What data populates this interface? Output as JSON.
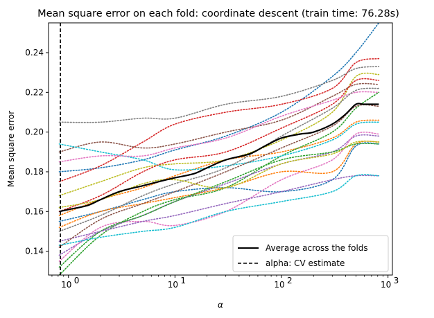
{
  "chart_data": {
    "type": "line",
    "title": "Mean square error on each fold: coordinate descent (train time: 76.28s)",
    "xlabel": "α",
    "ylabel": "Mean square error",
    "xscale": "log",
    "xlim": [
      0.65,
      1100
    ],
    "ylim": [
      0.128,
      0.255
    ],
    "grid": false,
    "legend_position": "lower-right",
    "x_ticks": [
      {
        "value": 1,
        "label": "10",
        "exp": "0"
      },
      {
        "value": 10,
        "label": "10",
        "exp": "1"
      },
      {
        "value": 100,
        "label": "10",
        "exp": "2"
      },
      {
        "value": 1000,
        "label": "10",
        "exp": "3"
      }
    ],
    "y_ticks": [
      0.14,
      0.16,
      0.18,
      0.2,
      0.22,
      0.24
    ],
    "y_tick_labels": [
      "0.14",
      "0.16",
      "0.18",
      "0.20",
      "0.22",
      "0.24"
    ],
    "x": [
      0.82,
      2,
      5,
      10,
      30,
      100,
      300,
      500,
      820
    ],
    "fold_series": [
      {
        "color": "#1f77b4",
        "values": [
          0.18,
          0.182,
          0.186,
          0.191,
          0.198,
          0.21,
          0.228,
          0.24,
          0.255
        ]
      },
      {
        "color": "#ff7f0e",
        "values": [
          0.158,
          0.166,
          0.172,
          0.178,
          0.186,
          0.19,
          0.197,
          0.205,
          0.206
        ]
      },
      {
        "color": "#2ca02c",
        "values": [
          0.128,
          0.148,
          0.16,
          0.166,
          0.172,
          0.188,
          0.2,
          0.212,
          0.22
        ]
      },
      {
        "color": "#d62728",
        "values": [
          0.175,
          0.183,
          0.195,
          0.204,
          0.21,
          0.214,
          0.222,
          0.235,
          0.237
        ]
      },
      {
        "color": "#9467bd",
        "values": [
          0.138,
          0.15,
          0.158,
          0.165,
          0.174,
          0.184,
          0.19,
          0.198,
          0.198
        ]
      },
      {
        "color": "#8c564b",
        "values": [
          0.19,
          0.195,
          0.192,
          0.194,
          0.2,
          0.206,
          0.218,
          0.224,
          0.224
        ]
      },
      {
        "color": "#e377c2",
        "values": [
          0.135,
          0.152,
          0.155,
          0.153,
          0.16,
          0.176,
          0.186,
          0.199,
          0.199
        ]
      },
      {
        "color": "#7f7f7f",
        "values": [
          0.205,
          0.205,
          0.207,
          0.207,
          0.214,
          0.218,
          0.226,
          0.232,
          0.233
        ]
      },
      {
        "color": "#bcbd22",
        "values": [
          0.168,
          0.175,
          0.182,
          0.184,
          0.186,
          0.196,
          0.21,
          0.228,
          0.229
        ]
      },
      {
        "color": "#17becf",
        "values": [
          0.194,
          0.19,
          0.186,
          0.181,
          0.183,
          0.188,
          0.196,
          0.204,
          0.205
        ]
      },
      {
        "color": "#1f77b4",
        "values": [
          0.155,
          0.16,
          0.166,
          0.17,
          0.172,
          0.17,
          0.176,
          0.193,
          0.194
        ]
      },
      {
        "color": "#ff7f0e",
        "values": [
          0.152,
          0.16,
          0.164,
          0.167,
          0.172,
          0.18,
          0.18,
          0.194,
          0.195
        ]
      },
      {
        "color": "#2ca02c",
        "values": [
          0.132,
          0.15,
          0.158,
          0.165,
          0.175,
          0.186,
          0.19,
          0.194,
          0.194
        ]
      },
      {
        "color": "#d62728",
        "values": [
          0.16,
          0.168,
          0.18,
          0.186,
          0.19,
          0.202,
          0.214,
          0.226,
          0.226
        ]
      },
      {
        "color": "#9467bd",
        "values": [
          0.145,
          0.15,
          0.155,
          0.158,
          0.164,
          0.17,
          0.176,
          0.178,
          0.178
        ]
      },
      {
        "color": "#8c564b",
        "values": [
          0.142,
          0.156,
          0.164,
          0.17,
          0.18,
          0.192,
          0.203,
          0.213,
          0.213
        ]
      },
      {
        "color": "#e377c2",
        "values": [
          0.185,
          0.188,
          0.188,
          0.192,
          0.197,
          0.208,
          0.216,
          0.22,
          0.22
        ]
      },
      {
        "color": "#7f7f7f",
        "values": [
          0.15,
          0.158,
          0.168,
          0.174,
          0.182,
          0.198,
          0.212,
          0.221,
          0.222
        ]
      },
      {
        "color": "#bcbd22",
        "values": [
          0.162,
          0.166,
          0.174,
          0.176,
          0.172,
          0.184,
          0.189,
          0.195,
          0.195
        ]
      },
      {
        "color": "#17becf",
        "values": [
          0.143,
          0.147,
          0.15,
          0.152,
          0.16,
          0.165,
          0.17,
          0.178,
          0.178
        ]
      }
    ],
    "average_series": {
      "name": "Average across the folds",
      "color": "#000000",
      "x": [
        0.82,
        1,
        1.5,
        2,
        3,
        5,
        7,
        10,
        15,
        20,
        30,
        50,
        70,
        100,
        150,
        200,
        300,
        400,
        500,
        600,
        820
      ],
      "values": [
        0.16,
        0.161,
        0.163,
        0.166,
        0.17,
        0.173,
        0.175,
        0.177,
        0.179,
        0.182,
        0.186,
        0.189,
        0.193,
        0.197,
        0.199,
        0.2,
        0.204,
        0.209,
        0.214,
        0.214,
        0.214
      ]
    },
    "cv_estimate": {
      "name": "alpha: CV estimate",
      "color": "#000000",
      "value": 0.84
    }
  }
}
